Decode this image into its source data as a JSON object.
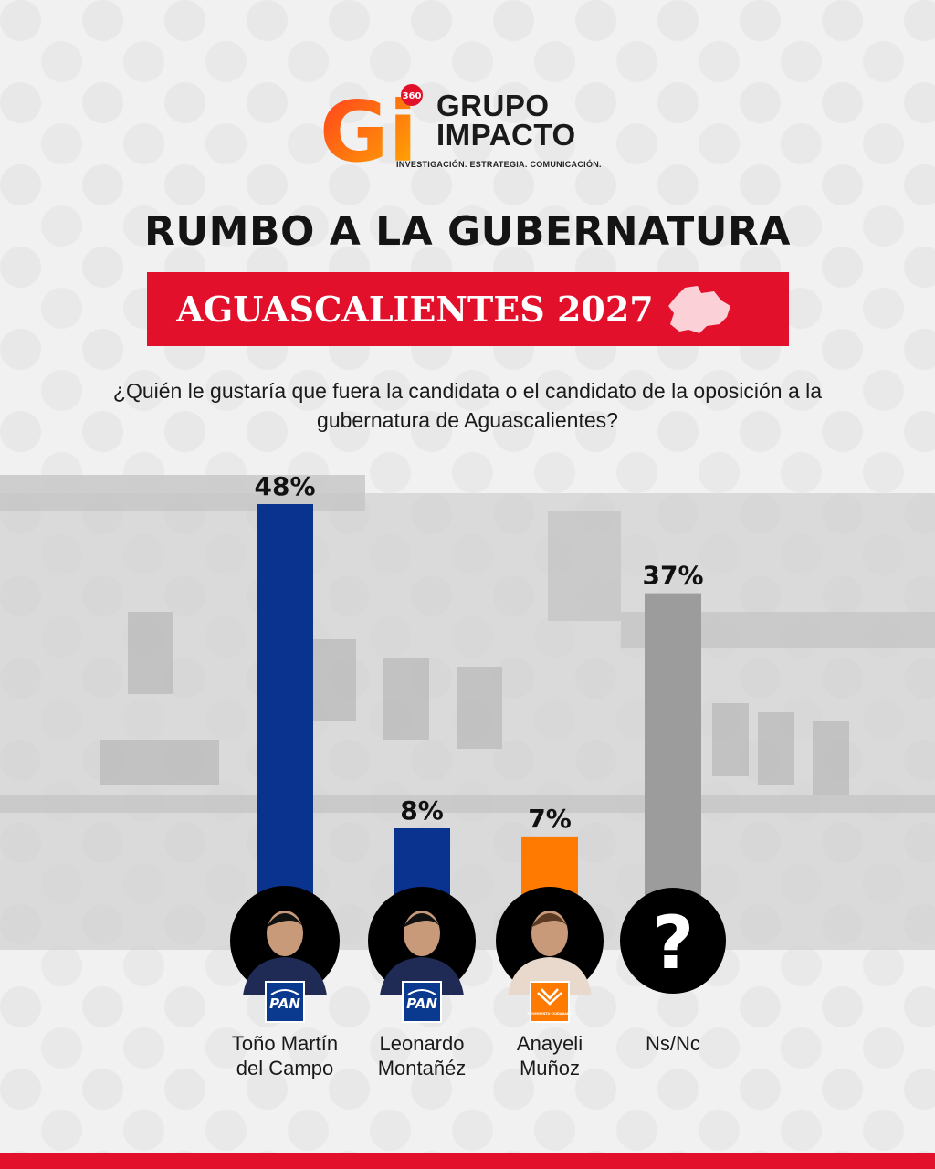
{
  "logo": {
    "mark_letters": "Gi",
    "mark_badge": "360",
    "name_line1": "GRUPO",
    "name_line2": "IMPACTO",
    "tagline": "INVESTIGACIÓN. ESTRATEGIA. COMUNICACIÓN."
  },
  "title": "RUMBO A LA GUBERNATURA",
  "banner": "AGUASCALIENTES 2027",
  "colors": {
    "red": "#e3102b",
    "blue": "#0a328f",
    "orange": "#ff7a00",
    "gray": "#9d9c9d"
  },
  "chart_data": {
    "type": "bar",
    "title": "¿Quién le gustaría que fuera la candidata o el candidato de la oposición a la gubernatura de Aguascalientes?",
    "categories": [
      "Toño Martín del Campo",
      "Leonardo Montañéz",
      "Anayeli Muñoz",
      "Ns/Nc"
    ],
    "values": [
      48,
      8,
      7,
      37
    ],
    "value_labels": [
      "48%",
      "8%",
      "7%",
      "37%"
    ],
    "bar_colors": [
      "#0a328f",
      "#0a328f",
      "#ff7a00",
      "#9d9c9d"
    ],
    "party_badges": [
      "PAN",
      "PAN",
      "MOVIMIENTO CIUDADANO",
      ""
    ],
    "unknown_symbol": "?",
    "ylim": [
      0,
      48
    ],
    "grid": false
  }
}
